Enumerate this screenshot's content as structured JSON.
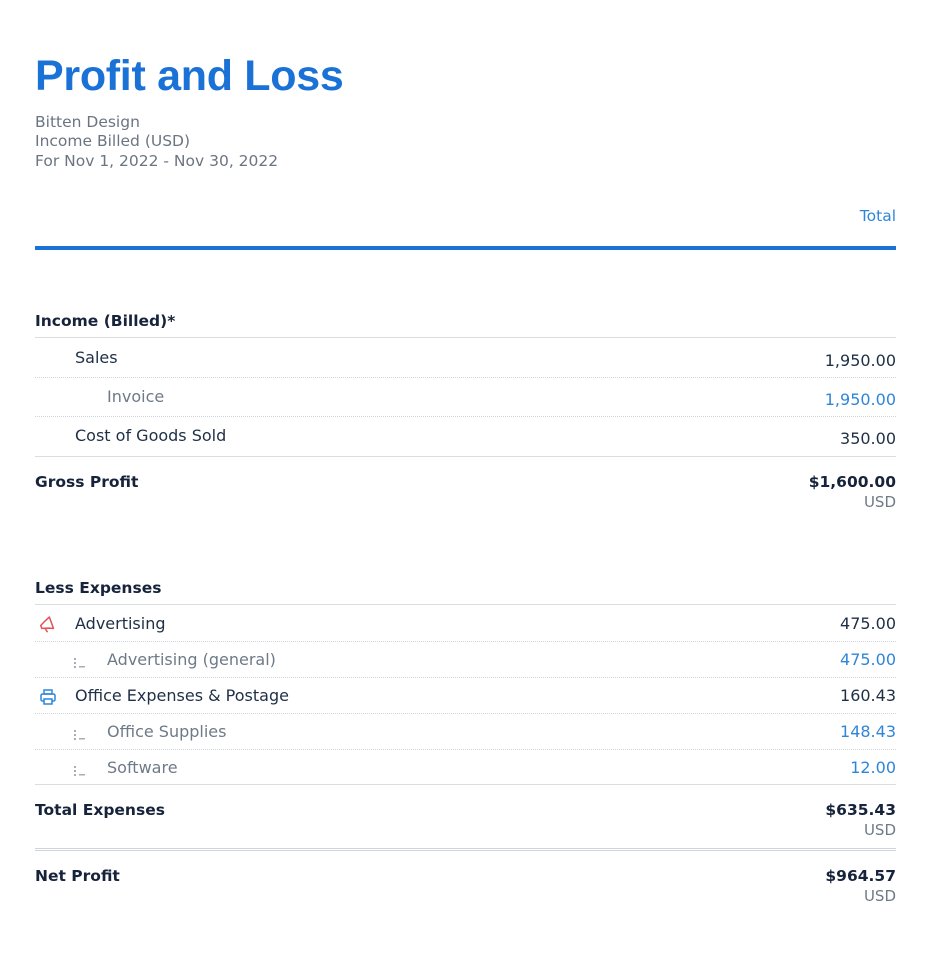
{
  "report": {
    "title": "Profit and Loss",
    "company": "Bitten Design",
    "basis": "Income Billed (USD)",
    "period": "For Nov 1, 2022 - Nov 30, 2022",
    "column_header": "Total"
  },
  "income": {
    "heading": "Income (Billed)*",
    "sales_label": "Sales",
    "sales_amount": "1,950.00",
    "invoice_label": "Invoice",
    "invoice_amount": "1,950.00",
    "cogs_label": "Cost of Goods Sold",
    "cogs_amount": "350.00"
  },
  "gross_profit": {
    "label": "Gross Profit",
    "amount": "$1,600.00",
    "currency": "USD"
  },
  "expenses": {
    "heading": "Less Expenses",
    "advertising_label": "Advertising",
    "advertising_icon": "megaphone-icon",
    "advertising_amount": "475.00",
    "advertising_general_label": "Advertising (general)",
    "advertising_general_amount": "475.00",
    "office_label": "Office Expenses & Postage",
    "office_icon": "printer-icon",
    "office_amount": "160.43",
    "office_supplies_label": "Office Supplies",
    "office_supplies_amount": "148.43",
    "software_label": "Software",
    "software_amount": "12.00"
  },
  "total_expenses": {
    "label": "Total Expenses",
    "amount": "$635.43",
    "currency": "USD"
  },
  "net_profit": {
    "label": "Net Profit",
    "amount": "$964.57",
    "currency": "USD"
  },
  "colors": {
    "accent": "#1a72d6",
    "link": "#2f86d8",
    "advertising_icon": "#e0525a"
  }
}
